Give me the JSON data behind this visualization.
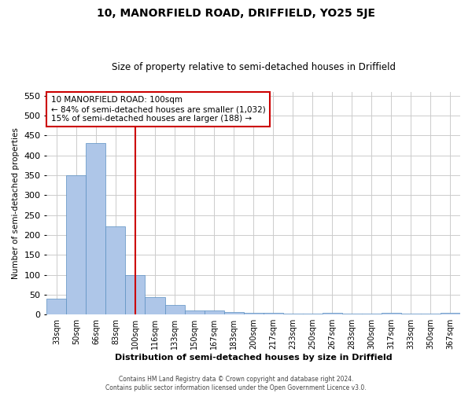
{
  "title": "10, MANORFIELD ROAD, DRIFFIELD, YO25 5JE",
  "subtitle": "Size of property relative to semi-detached houses in Driffield",
  "xlabel": "Distribution of semi-detached houses by size in Driffield",
  "ylabel": "Number of semi-detached properties",
  "categories": [
    "33sqm",
    "50sqm",
    "66sqm",
    "83sqm",
    "100sqm",
    "116sqm",
    "133sqm",
    "150sqm",
    "167sqm",
    "183sqm",
    "200sqm",
    "217sqm",
    "233sqm",
    "250sqm",
    "267sqm",
    "283sqm",
    "300sqm",
    "317sqm",
    "333sqm",
    "350sqm",
    "367sqm"
  ],
  "values": [
    40,
    350,
    432,
    221,
    100,
    44,
    25,
    10,
    10,
    6,
    5,
    5,
    2,
    2,
    4,
    2,
    2,
    4,
    2,
    2,
    4
  ],
  "bar_color": "#aec6e8",
  "bar_edge_color": "#5a8fc2",
  "highlight_index": 4,
  "highlight_color": "#cc0000",
  "ylim": [
    0,
    560
  ],
  "yticks": [
    0,
    50,
    100,
    150,
    200,
    250,
    300,
    350,
    400,
    450,
    500,
    550
  ],
  "annotation_title": "10 MANORFIELD ROAD: 100sqm",
  "annotation_line1": "← 84% of semi-detached houses are smaller (1,032)",
  "annotation_line2": "15% of semi-detached houses are larger (188) →",
  "annotation_box_color": "#ffffff",
  "annotation_box_edge": "#cc0000",
  "footer_line1": "Contains HM Land Registry data © Crown copyright and database right 2024.",
  "footer_line2": "Contains public sector information licensed under the Open Government Licence v3.0.",
  "grid_color": "#cccccc",
  "background_color": "#ffffff"
}
